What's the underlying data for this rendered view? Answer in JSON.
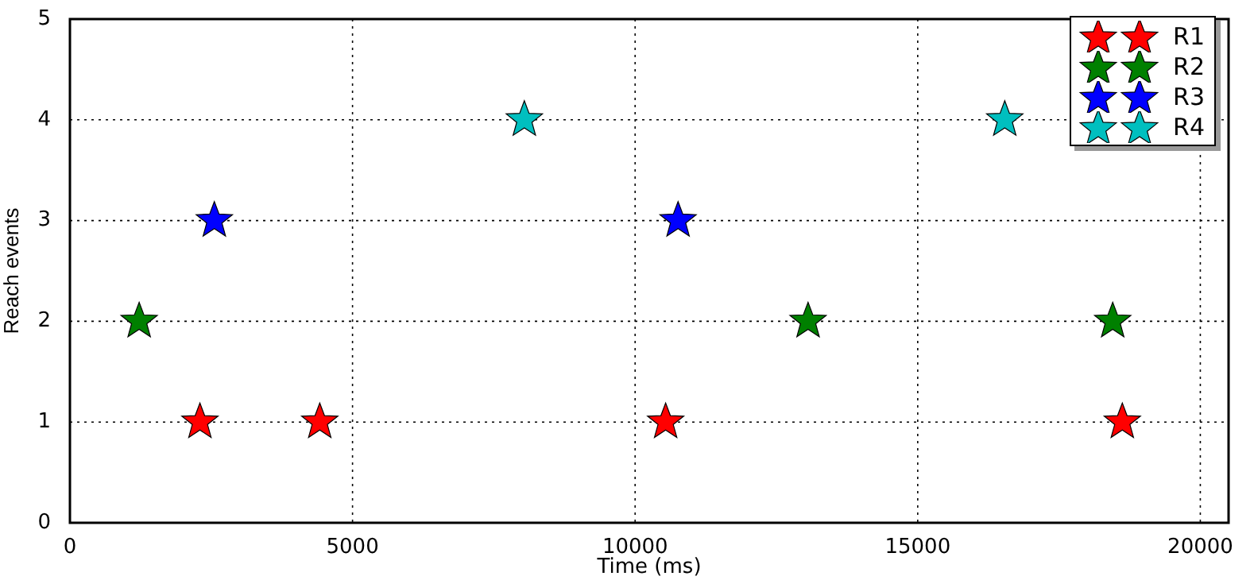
{
  "chart_data": {
    "type": "scatter",
    "xlabel": "Time (ms)",
    "ylabel": "Reach events",
    "xlim": [
      0,
      20500
    ],
    "xticks": [
      0,
      5000,
      10000,
      15000,
      20000
    ],
    "ylim": [
      0,
      5
    ],
    "yticks": [
      0,
      1,
      2,
      3,
      4,
      5
    ],
    "grid": true,
    "legend": "top right",
    "marker": "star",
    "series": [
      {
        "name": "R1",
        "color": "#ff0000",
        "x": [
          2300,
          4420,
          10540,
          18620
        ],
        "values": [
          1,
          1,
          1,
          1
        ]
      },
      {
        "name": "R2",
        "color": "#008000",
        "x": [
          1225,
          13060,
          18450
        ],
        "values": [
          2,
          2,
          2
        ]
      },
      {
        "name": "R3",
        "color": "#0000ff",
        "x": [
          2555,
          10760
        ],
        "values": [
          3,
          3
        ]
      },
      {
        "name": "R4",
        "color": "#00bfbf",
        "x": [
          8040,
          16540
        ],
        "values": [
          4,
          4
        ]
      }
    ]
  }
}
